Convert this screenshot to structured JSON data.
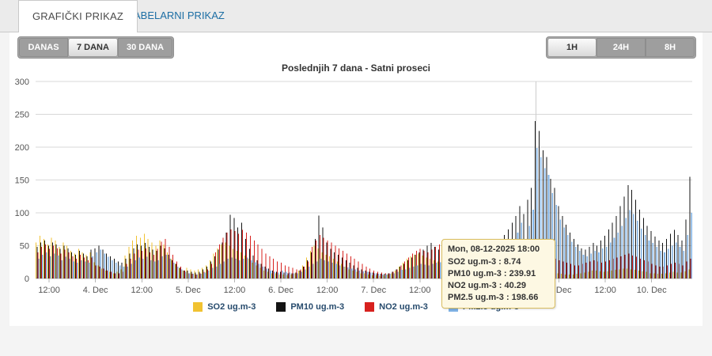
{
  "tabs": {
    "active": "GRAFIČKI PRIKAZ",
    "inactive": "TABELARNI PRIKAZ"
  },
  "range_buttons": [
    {
      "label": "DANAS",
      "selected": false
    },
    {
      "label": "7 DANA",
      "selected": true
    },
    {
      "label": "30 DANA",
      "selected": false
    }
  ],
  "interval_buttons": [
    {
      "label": "1H",
      "selected": true
    },
    {
      "label": "24H",
      "selected": false
    },
    {
      "label": "8H",
      "selected": false
    }
  ],
  "tooltip": {
    "header": "Mon, 08-12-2025 18:00",
    "rows": [
      "SO2 ug.m-3 : 8.74",
      "PM10 ug.m-3 : 239.91",
      "NO2 ug.m-3 : 40.29",
      "PM2.5 ug.m-3 : 198.66"
    ]
  },
  "chart_data": {
    "type": "bar",
    "title": "Poslednjih 7 dana - Satni proseci",
    "x_start": "2025-12-03 09:00",
    "x_interval_hours": 1,
    "ylim": [
      0,
      300
    ],
    "y_ticks": [
      0,
      50,
      100,
      150,
      200,
      250,
      300
    ],
    "grid": true,
    "legend_position": "bottom",
    "crosshair_index": 129,
    "x_tick_labels": [
      {
        "index": 3,
        "label": "12:00"
      },
      {
        "index": 15,
        "label": "4. Dec"
      },
      {
        "index": 27,
        "label": "12:00"
      },
      {
        "index": 39,
        "label": "5. Dec"
      },
      {
        "index": 51,
        "label": "12:00"
      },
      {
        "index": 63,
        "label": "6. Dec"
      },
      {
        "index": 75,
        "label": "12:00"
      },
      {
        "index": 87,
        "label": "7. Dec"
      },
      {
        "index": 99,
        "label": "12:00"
      },
      {
        "index": 111,
        "label": "8. Dec"
      },
      {
        "index": 123,
        "label": "12:00"
      },
      {
        "index": 135,
        "label": "9. Dec"
      },
      {
        "index": 147,
        "label": "12:00"
      },
      {
        "index": 159,
        "label": "10. Dec"
      }
    ],
    "series": [
      {
        "name": "SO2 ug.m-3",
        "color": "#f1c231",
        "values": [
          55,
          65,
          60,
          52,
          62,
          58,
          48,
          55,
          50,
          42,
          38,
          45,
          40,
          36,
          40,
          25,
          20,
          15,
          12,
          10,
          8,
          10,
          14,
          35,
          48,
          58,
          65,
          62,
          68,
          60,
          55,
          50,
          58,
          52,
          40,
          30,
          22,
          16,
          12,
          16,
          14,
          12,
          14,
          16,
          20,
          28,
          38,
          46,
          52,
          55,
          50,
          45,
          42,
          40,
          35,
          30,
          24,
          20,
          16,
          12,
          10,
          8,
          8,
          6,
          6,
          5,
          6,
          8,
          12,
          20,
          32,
          42,
          50,
          46,
          40,
          36,
          34,
          30,
          26,
          22,
          18,
          14,
          12,
          10,
          8,
          8,
          6,
          5,
          5,
          4,
          5,
          6,
          8,
          12,
          18,
          24,
          30,
          34,
          36,
          38,
          35,
          32,
          30,
          28,
          26,
          30,
          34,
          38,
          36,
          30,
          26,
          20,
          16,
          14,
          12,
          10,
          12,
          16,
          22,
          26,
          30,
          32,
          30,
          26,
          22,
          18,
          14,
          12,
          10,
          8.74,
          9,
          10,
          10,
          9,
          8,
          8,
          7,
          6,
          6,
          6,
          7,
          8,
          9,
          10,
          12,
          12,
          11,
          10,
          11,
          12,
          13,
          14,
          15,
          15,
          14,
          13,
          12,
          11,
          10,
          8,
          8,
          7,
          7,
          8,
          9,
          10,
          9,
          9,
          11,
          14
        ]
      },
      {
        "name": "PM10 ug.m-3",
        "color": "#141414",
        "values": [
          48,
          55,
          58,
          50,
          55,
          52,
          45,
          50,
          46,
          40,
          36,
          42,
          38,
          34,
          44,
          46,
          50,
          44,
          38,
          34,
          30,
          26,
          24,
          30,
          38,
          46,
          52,
          50,
          54,
          48,
          44,
          42,
          50,
          46,
          36,
          28,
          22,
          16,
          12,
          12,
          10,
          9,
          10,
          14,
          18,
          26,
          34,
          44,
          55,
          70,
          97,
          92,
          78,
          85,
          60,
          45,
          35,
          28,
          22,
          18,
          15,
          12,
          10,
          10,
          9,
          8,
          8,
          9,
          12,
          18,
          28,
          40,
          60,
          96,
          78,
          55,
          45,
          40,
          36,
          32,
          28,
          24,
          20,
          16,
          14,
          12,
          10,
          9,
          8,
          7,
          7,
          8,
          10,
          14,
          18,
          22,
          28,
          32,
          36,
          40,
          44,
          50,
          54,
          48,
          44,
          40,
          44,
          48,
          52,
          46,
          42,
          38,
          34,
          30,
          28,
          26,
          30,
          36,
          44,
          50,
          58,
          66,
          75,
          85,
          95,
          110,
          98,
          120,
          138,
          239.91,
          225,
          195,
          185,
          152,
          138,
          110,
          95,
          82,
          70,
          60,
          52,
          46,
          44,
          48,
          54,
          50,
          58,
          65,
          75,
          85,
          95,
          110,
          125,
          142,
          135,
          120,
          105,
          92,
          80,
          72,
          64,
          58,
          54,
          60,
          68,
          74,
          66,
          58,
          90,
          155
        ]
      },
      {
        "name": "NO2 ug.m-3",
        "color": "#d7211e",
        "values": [
          40,
          48,
          52,
          45,
          50,
          46,
          38,
          44,
          40,
          34,
          30,
          36,
          32,
          28,
          32,
          20,
          18,
          15,
          12,
          10,
          8,
          8,
          10,
          22,
          30,
          38,
          44,
          42,
          46,
          40,
          36,
          45,
          56,
          60,
          48,
          36,
          26,
          18,
          12,
          8,
          7,
          6,
          8,
          10,
          14,
          22,
          40,
          52,
          62,
          70,
          75,
          72,
          68,
          74,
          70,
          65,
          58,
          52,
          45,
          38,
          34,
          30,
          26,
          24,
          20,
          18,
          16,
          14,
          14,
          18,
          26,
          48,
          58,
          66,
          62,
          58,
          55,
          50,
          46,
          42,
          38,
          34,
          30,
          26,
          22,
          18,
          15,
          12,
          10,
          9,
          8,
          8,
          10,
          14,
          20,
          26,
          32,
          38,
          42,
          45,
          42,
          40,
          44,
          48,
          52,
          46,
          40,
          44,
          48,
          42,
          38,
          32,
          28,
          25,
          22,
          20,
          22,
          26,
          30,
          34,
          38,
          42,
          45,
          48,
          45,
          42,
          40,
          42,
          44,
          40.29,
          38,
          36,
          34,
          32,
          30,
          28,
          26,
          24,
          22,
          20,
          20,
          22,
          24,
          26,
          28,
          26,
          24,
          26,
          28,
          30,
          32,
          34,
          36,
          38,
          35,
          33,
          30,
          28,
          26,
          22,
          20,
          18,
          18,
          20,
          22,
          24,
          22,
          20,
          26,
          30
        ]
      },
      {
        "name": "PM2.5 ug.m-3",
        "color": "#7fb2e5",
        "values": [
          30,
          36,
          40,
          34,
          38,
          35,
          28,
          33,
          30,
          26,
          24,
          28,
          26,
          24,
          34,
          40,
          44,
          38,
          33,
          28,
          24,
          20,
          18,
          18,
          22,
          28,
          32,
          30,
          33,
          28,
          26,
          28,
          34,
          36,
          30,
          24,
          18,
          14,
          10,
          8,
          7,
          6,
          7,
          9,
          12,
          16,
          18,
          22,
          26,
          30,
          32,
          30,
          28,
          30,
          32,
          28,
          25,
          22,
          18,
          15,
          12,
          10,
          9,
          12,
          10,
          9,
          8,
          8,
          10,
          14,
          18,
          22,
          26,
          30,
          28,
          26,
          24,
          22,
          20,
          18,
          17,
          15,
          14,
          12,
          11,
          10,
          9,
          8,
          7,
          6,
          6,
          7,
          8,
          10,
          13,
          14,
          16,
          18,
          20,
          22,
          21,
          20,
          22,
          24,
          25,
          23,
          22,
          24,
          26,
          24,
          22,
          20,
          18,
          16,
          15,
          14,
          16,
          20,
          26,
          32,
          38,
          44,
          52,
          60,
          70,
          85,
          60,
          80,
          105,
          198.66,
          185,
          168,
          158,
          130,
          112,
          90,
          78,
          66,
          56,
          48,
          42,
          36,
          34,
          38,
          42,
          40,
          46,
          48,
          55,
          62,
          70,
          80,
          92,
          104,
          98,
          88,
          76,
          66,
          58,
          54,
          48,
          42,
          40,
          45,
          50,
          55,
          48,
          42,
          66,
          100
        ]
      }
    ]
  }
}
